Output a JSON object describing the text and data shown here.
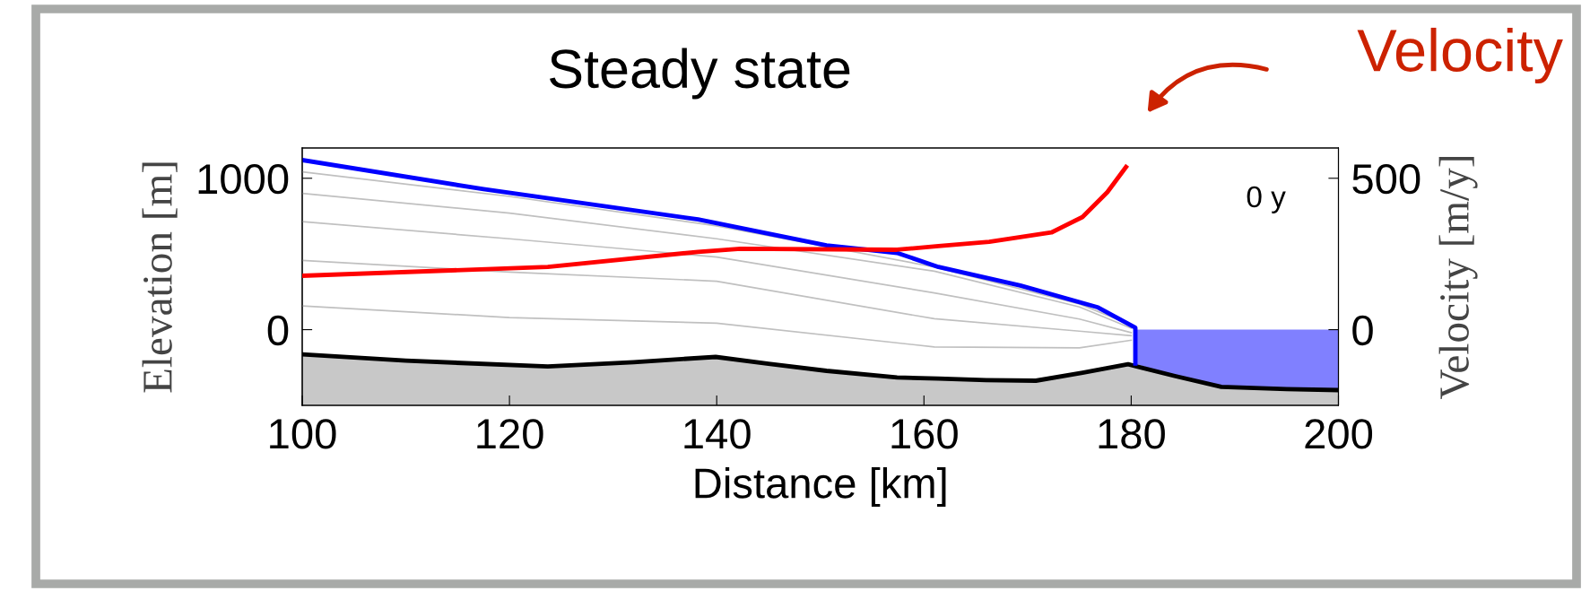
{
  "chart_data": {
    "type": "line",
    "title": "Steady state",
    "xlabel": "Distance [km]",
    "ylabel": "Elevation [m]",
    "y2label": "Velocity [m/y]",
    "xlim": [
      100,
      200
    ],
    "xticks": [
      100,
      120,
      140,
      160,
      180,
      200
    ],
    "ylim": [
      -500,
      1200
    ],
    "yticks": [
      0,
      1000
    ],
    "y2lim": [
      -250,
      600
    ],
    "y2ticks": [
      0,
      500
    ],
    "grid": false,
    "legend": false,
    "annotations": [
      "0 y",
      "Velocity"
    ],
    "series": [
      {
        "type": "line",
        "color": "#000000",
        "x": [
          100,
          110,
          123.7,
          132,
          139.9,
          145,
          150.6,
          157.4,
          161.4,
          166,
          170.8,
          175.3,
          179.7,
          184.2,
          188.7,
          195,
          200
        ],
        "values": [
          -163,
          -205,
          -243,
          -215,
          -180,
          -225,
          -272,
          -316,
          -323,
          -333,
          -337,
          -285,
          -228,
          -306,
          -378,
          -393,
          -399
        ]
      },
      {
        "type": "area",
        "color": "#8080ff",
        "x": [
          180.4,
          184.2,
          188.7,
          195,
          200
        ],
        "values": [
          -224,
          -306,
          -378,
          -393,
          -399
        ]
      },
      {
        "color": "#c0c0c0",
        "x": [
          100,
          120,
          140,
          161,
          175,
          180
        ],
        "values": [
          1042,
          880,
          685,
          414,
          170,
          30
        ]
      },
      {
        "color": "#c0c0c0",
        "x": [
          100,
          120,
          140,
          161,
          175,
          180
        ],
        "values": [
          900,
          770,
          600,
          386,
          150,
          10
        ]
      },
      {
        "color": "#c0c0c0",
        "x": [
          100,
          120,
          140,
          161,
          175,
          180
        ],
        "values": [
          714,
          600,
          480,
          243,
          70,
          -20
        ]
      },
      {
        "color": "#c0c0c0",
        "x": [
          100,
          120,
          140,
          161,
          175,
          180
        ],
        "values": [
          457,
          380,
          320,
          72,
          -10,
          -40
        ]
      },
      {
        "color": "#c0c0c0",
        "x": [
          100,
          120,
          140,
          161,
          175,
          180
        ],
        "values": [
          157,
          80,
          43,
          -114,
          -120,
          -70
        ]
      },
      {
        "color": "#0000ff",
        "x": [
          100,
          117.5,
          138.2,
          150.6,
          157.4,
          161.4,
          169.3,
          176.8,
          180.4,
          180.4
        ],
        "values": [
          1120,
          928,
          728,
          557,
          507,
          414,
          291,
          147,
          13,
          -224
        ]
      },
      {
        "color": "#ff0000",
        "axis": "y2",
        "x": [
          100,
          123.7,
          138.2,
          142.3,
          157.4,
          161.4,
          166.3,
          172.3,
          175.3,
          177.7,
          179.5
        ],
        "values": [
          178,
          207,
          257,
          267,
          264,
          276,
          290,
          321,
          372,
          454,
          537
        ]
      }
    ]
  }
}
